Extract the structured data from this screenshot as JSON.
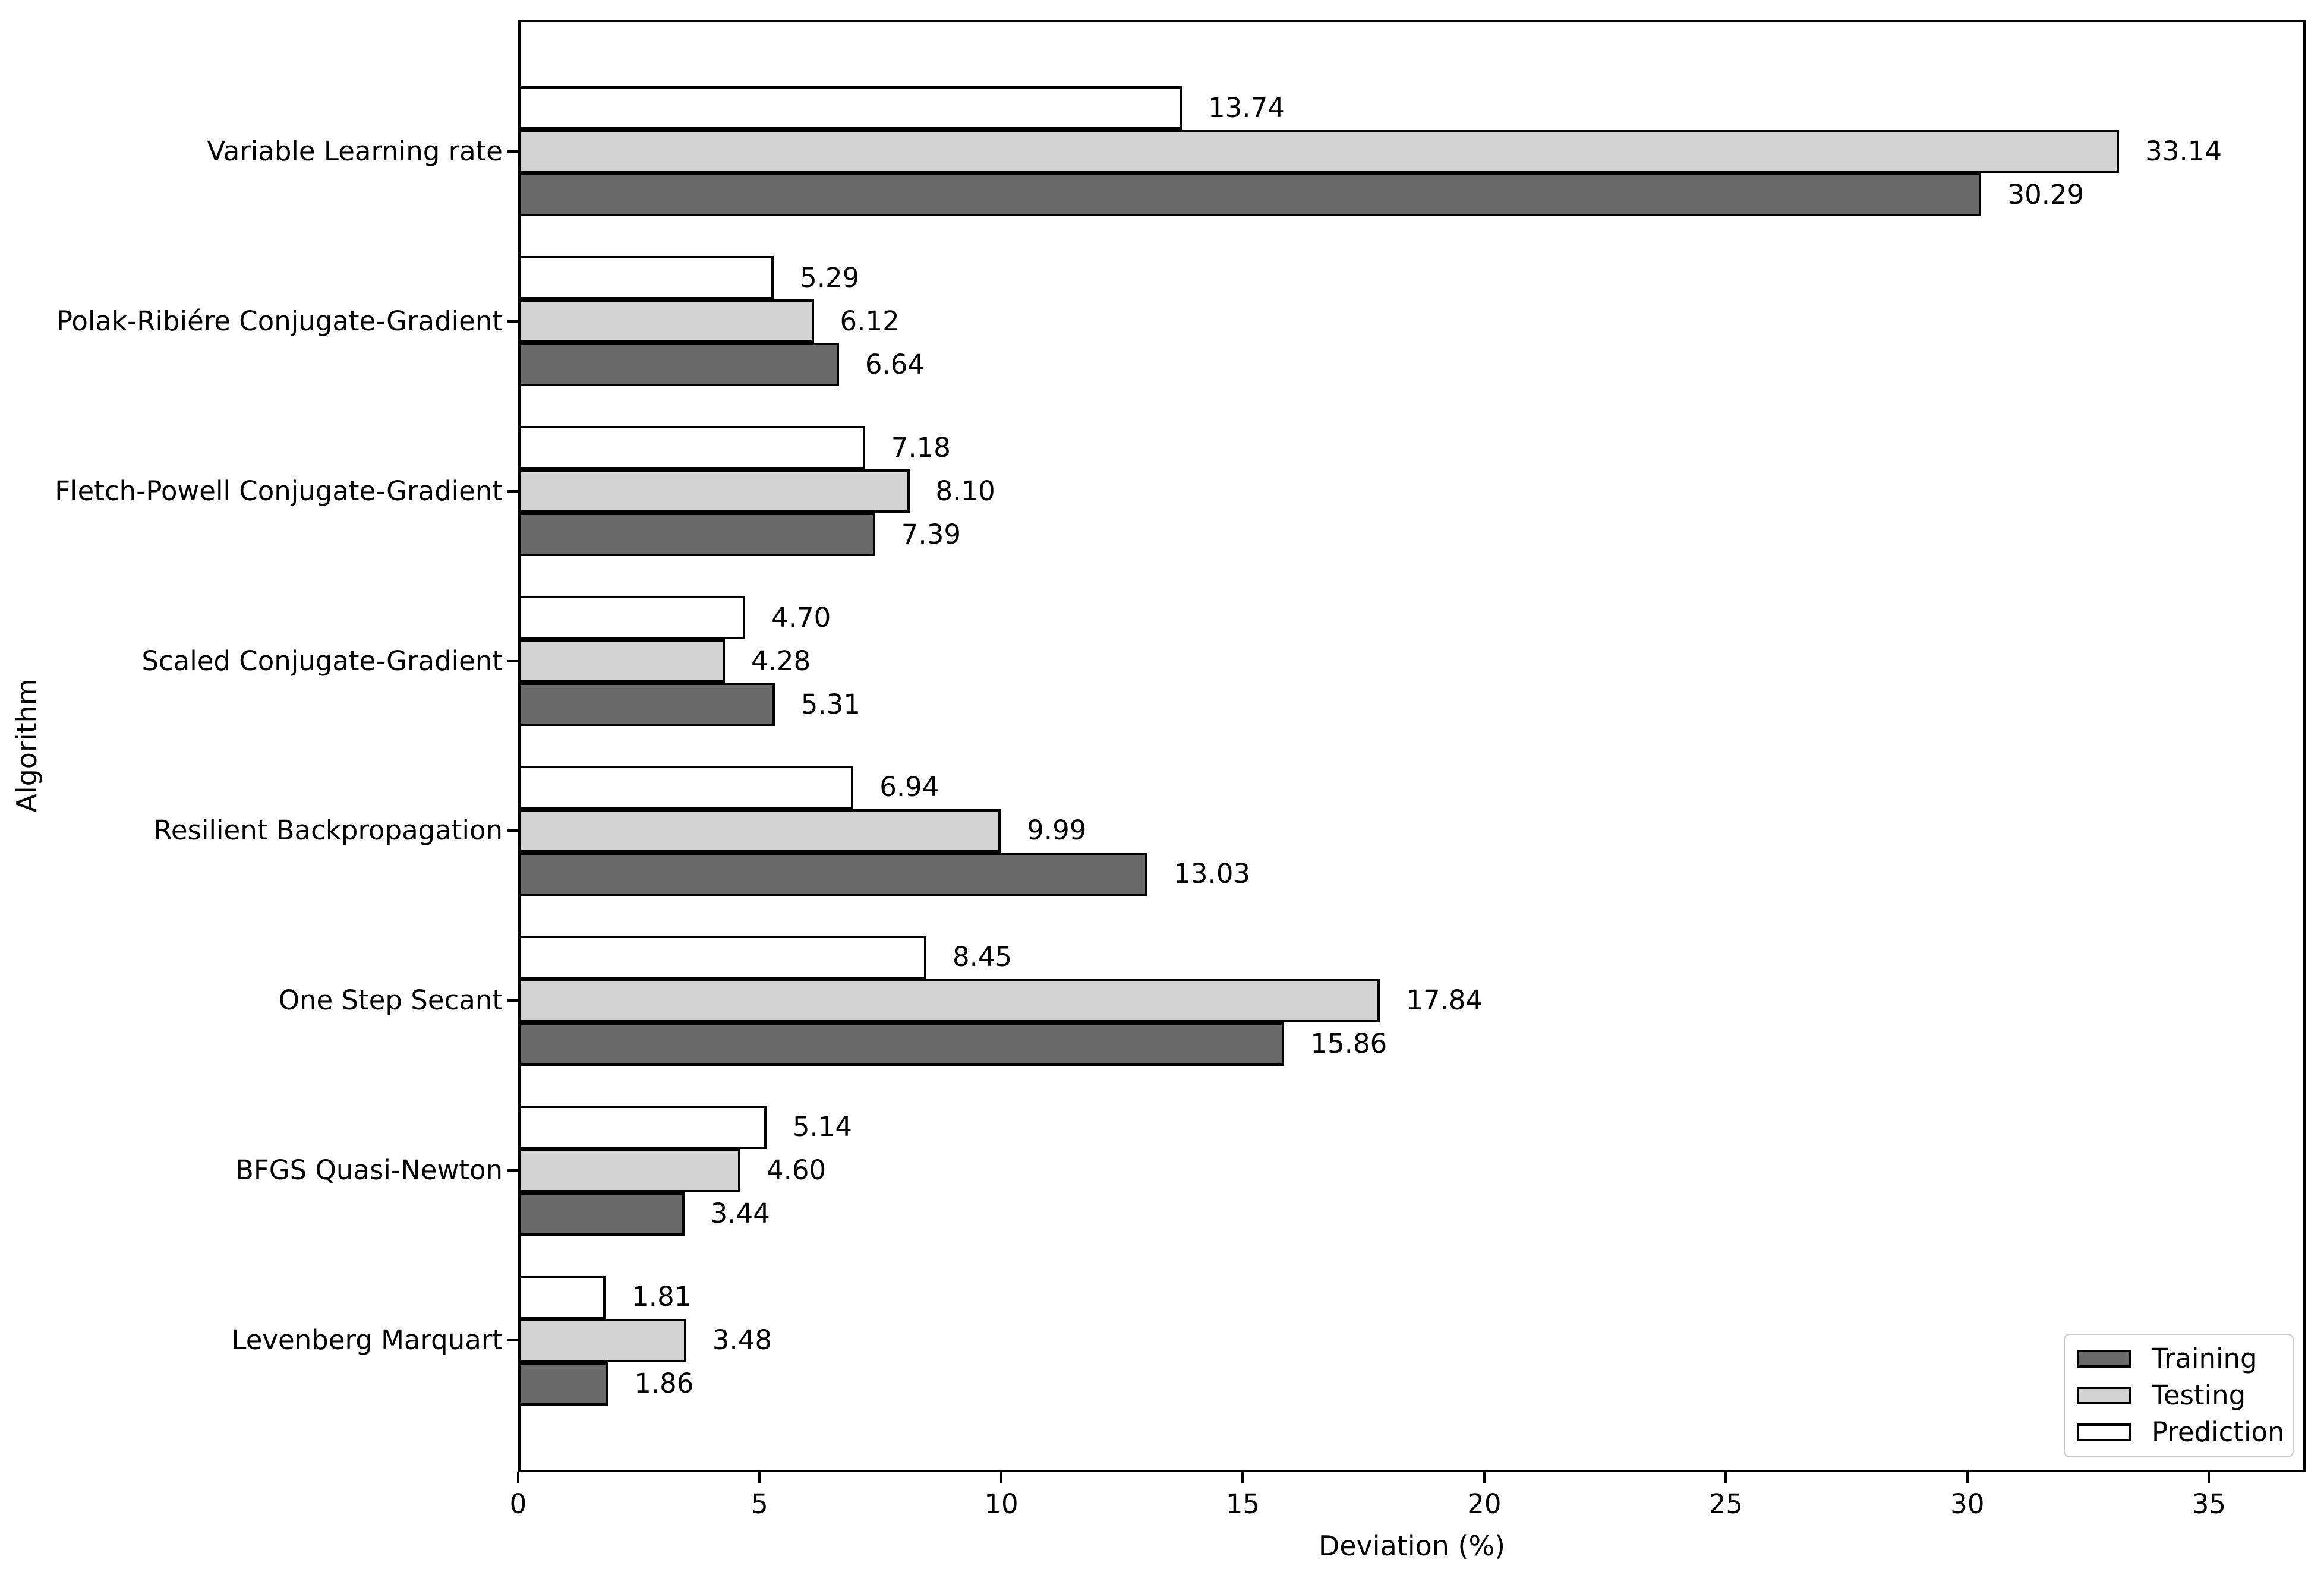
{
  "chart_data": {
    "type": "bar",
    "orientation": "horizontal",
    "title": "",
    "xlabel": "Deviation (%)",
    "ylabel": "Algorithm",
    "categories": [
      "Variable Learning rate",
      "Polak-Ribiére Conjugate-Gradient",
      "Fletch-Powell Conjugate-Gradient",
      "Scaled Conjugate-Gradient",
      "Resilient Backpropagation",
      "One Step Secant",
      "BFGS Quasi-Newton",
      "Levenberg Marquart"
    ],
    "series": [
      {
        "name": "Training",
        "color": "#696969",
        "values": [
          30.29,
          6.64,
          7.39,
          5.31,
          13.03,
          15.86,
          3.44,
          1.86
        ]
      },
      {
        "name": "Testing",
        "color": "#d3d3d3",
        "values": [
          33.14,
          6.12,
          8.1,
          4.28,
          9.99,
          17.84,
          4.6,
          3.48
        ]
      },
      {
        "name": "Prediction",
        "color": "#ffffff",
        "values": [
          13.74,
          5.29,
          7.18,
          4.7,
          6.94,
          8.45,
          5.14,
          1.81
        ]
      }
    ],
    "bar_row_order_top_to_bottom": [
      "Prediction",
      "Testing",
      "Training"
    ],
    "value_labels_decimals": 2,
    "xlim": [
      0,
      37
    ],
    "xticks": [
      0,
      5,
      10,
      15,
      20,
      25,
      30,
      35
    ],
    "grid": "off",
    "bar_edge_color": "#000000",
    "legend": {
      "position": "lower right",
      "entries": [
        "Training",
        "Testing",
        "Prediction"
      ]
    }
  }
}
